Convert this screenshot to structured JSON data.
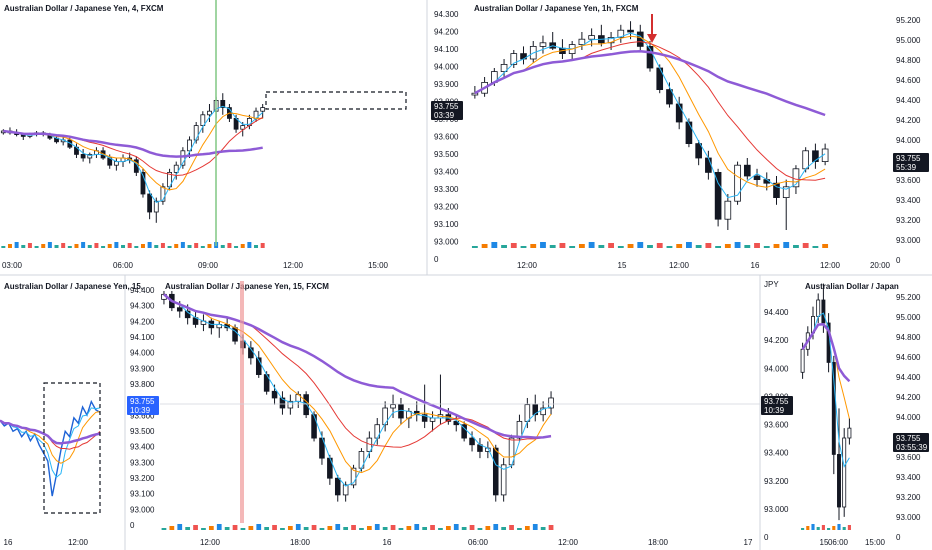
{
  "chart_data": [
    {
      "type": "candlestick",
      "title": "Australian Dollar / Japanese Yen, 4, FXCM",
      "x_ticks": [
        "03:00",
        "06:00",
        "09:00",
        "12:00",
        "15:00"
      ],
      "y_ticks": [],
      "price_badge": {
        "value": "",
        "countdown": ""
      },
      "candles": [
        [
          93.64,
          93.66,
          93.63,
          93.65
        ],
        [
          93.65,
          93.67,
          93.63,
          93.64
        ],
        [
          93.64,
          93.66,
          93.62,
          93.63
        ],
        [
          93.63,
          93.64,
          93.6,
          93.62
        ],
        [
          93.62,
          93.64,
          93.61,
          93.63
        ],
        [
          93.63,
          93.65,
          93.62,
          93.64
        ],
        [
          93.64,
          93.65,
          93.62,
          93.63
        ],
        [
          93.63,
          93.64,
          93.6,
          93.61
        ],
        [
          93.61,
          93.63,
          93.58,
          93.59
        ],
        [
          93.59,
          93.62,
          93.57,
          93.6
        ],
        [
          93.6,
          93.62,
          93.55,
          93.56
        ],
        [
          93.56,
          93.58,
          93.5,
          93.52
        ],
        [
          93.52,
          93.55,
          93.48,
          93.5
        ],
        [
          93.5,
          93.53,
          93.47,
          93.52
        ],
        [
          93.52,
          93.56,
          93.5,
          93.54
        ],
        [
          93.54,
          93.56,
          93.49,
          93.5
        ],
        [
          93.5,
          93.52,
          93.44,
          93.46
        ],
        [
          93.46,
          93.5,
          93.43,
          93.48
        ],
        [
          93.48,
          93.52,
          93.45,
          93.5
        ],
        [
          93.5,
          93.53,
          93.47,
          93.49
        ],
        [
          93.49,
          93.51,
          93.4,
          93.42
        ],
        [
          93.42,
          93.44,
          93.28,
          93.3
        ],
        [
          93.3,
          93.32,
          93.16,
          93.2
        ],
        [
          93.2,
          93.28,
          93.14,
          93.26
        ],
        [
          93.26,
          93.36,
          93.24,
          93.34
        ],
        [
          93.34,
          93.44,
          93.32,
          93.42
        ],
        [
          93.42,
          93.48,
          93.38,
          93.46
        ],
        [
          93.46,
          93.56,
          93.44,
          93.54
        ],
        [
          93.54,
          93.62,
          93.5,
          93.6
        ],
        [
          93.6,
          93.7,
          93.58,
          93.68
        ],
        [
          93.68,
          93.76,
          93.64,
          93.74
        ],
        [
          93.74,
          93.8,
          93.7,
          93.76
        ],
        [
          93.76,
          93.84,
          93.72,
          93.82
        ],
        [
          93.82,
          93.86,
          93.74,
          93.78
        ],
        [
          93.78,
          93.8,
          93.7,
          93.72
        ],
        [
          93.72,
          93.74,
          93.64,
          93.66
        ],
        [
          93.66,
          93.7,
          93.62,
          93.68
        ],
        [
          93.68,
          93.74,
          93.66,
          93.72
        ],
        [
          93.72,
          93.78,
          93.7,
          93.76
        ],
        [
          93.76,
          93.8,
          93.72,
          93.78
        ]
      ]
    },
    {
      "type": "candlestick",
      "title": "Australian Dollar / Japanese Yen, 1h, FXCM",
      "x_ticks": [
        "12:00",
        "15",
        "12:00",
        "16",
        "12:00",
        "20:00"
      ],
      "y_ticks": [
        "95.200",
        "95.000",
        "94.800",
        "94.600",
        "94.400",
        "94.200",
        "94.000",
        "93.800",
        "93.600",
        "93.400",
        "93.200",
        "93.000",
        "0"
      ],
      "left_y_ticks": [
        "94.300",
        "94.200",
        "94.100",
        "94.000",
        "93.900",
        "93.800",
        "93.700",
        "93.600",
        "93.500",
        "93.400",
        "93.300",
        "93.200",
        "93.100",
        "93.000",
        "0"
      ],
      "price_badge": {
        "value": "93.755",
        "countdown": "55:39"
      },
      "left_badge": {
        "value": "93.755",
        "countdown": "03:39"
      },
      "candles": [
        [
          93.85,
          93.9,
          93.83,
          93.86
        ],
        [
          93.86,
          93.95,
          93.84,
          93.92
        ],
        [
          93.92,
          94.0,
          93.9,
          93.98
        ],
        [
          93.98,
          94.05,
          93.94,
          94.02
        ],
        [
          94.02,
          94.1,
          94.0,
          94.08
        ],
        [
          94.08,
          94.12,
          94.02,
          94.05
        ],
        [
          94.05,
          94.15,
          94.03,
          94.12
        ],
        [
          94.12,
          94.18,
          94.08,
          94.14
        ],
        [
          94.14,
          94.2,
          94.1,
          94.11
        ],
        [
          94.11,
          94.16,
          94.05,
          94.08
        ],
        [
          94.08,
          94.15,
          94.04,
          94.13
        ],
        [
          94.13,
          94.2,
          94.1,
          94.16
        ],
        [
          94.16,
          94.22,
          94.12,
          94.18
        ],
        [
          94.18,
          94.24,
          94.12,
          94.14
        ],
        [
          94.14,
          94.2,
          94.1,
          94.17
        ],
        [
          94.17,
          94.24,
          94.14,
          94.21
        ],
        [
          94.21,
          94.26,
          94.16,
          94.2
        ],
        [
          94.2,
          94.24,
          94.1,
          94.12
        ],
        [
          94.12,
          94.15,
          93.98,
          94.0
        ],
        [
          94.0,
          94.02,
          93.86,
          93.88
        ],
        [
          93.88,
          93.92,
          93.78,
          93.8
        ],
        [
          93.8,
          93.84,
          93.66,
          93.7
        ],
        [
          93.7,
          93.72,
          93.56,
          93.58
        ],
        [
          93.58,
          93.6,
          93.46,
          93.5
        ],
        [
          93.5,
          93.54,
          93.38,
          93.42
        ],
        [
          93.42,
          93.44,
          93.12,
          93.16
        ],
        [
          93.16,
          93.3,
          93.1,
          93.26
        ],
        [
          93.26,
          93.48,
          93.24,
          93.46
        ],
        [
          93.46,
          93.5,
          93.38,
          93.4
        ],
        [
          93.4,
          93.44,
          93.34,
          93.38
        ],
        [
          93.38,
          93.42,
          93.32,
          93.36
        ],
        [
          93.36,
          93.4,
          93.24,
          93.28
        ],
        [
          93.28,
          93.38,
          93.1,
          93.34
        ],
        [
          93.34,
          93.46,
          93.3,
          93.44
        ],
        [
          93.44,
          93.56,
          93.42,
          93.54
        ],
        [
          93.54,
          93.58,
          93.44,
          93.48
        ],
        [
          93.48,
          93.58,
          93.46,
          93.55
        ]
      ]
    },
    {
      "type": "line",
      "title": "Australian Dollar / Japanese Yen, 15,",
      "x_ticks": [
        "16",
        "12:00"
      ],
      "y_ticks": [],
      "price_badge": {
        "value": "",
        "countdown": ""
      },
      "values": [
        93.7,
        93.66,
        93.68,
        93.62,
        93.64,
        93.58,
        93.62,
        93.55,
        93.6,
        93.52,
        93.46,
        93.4,
        93.14,
        93.3,
        93.48,
        93.62,
        93.58,
        93.72,
        93.68,
        93.8,
        93.74,
        93.84,
        93.78,
        93.76
      ]
    },
    {
      "type": "candlestick",
      "title": "Australian Dollar / Japanese Yen, 15, FXCM",
      "x_ticks": [
        "12:00",
        "18:00",
        "16",
        "06:00",
        "12:00",
        "18:00",
        "17",
        "06:00"
      ],
      "y_ticks": [],
      "left_y_ticks": [
        "94.400",
        "94.300",
        "94.200",
        "94.100",
        "94.000",
        "93.900",
        "93.800",
        "93.700",
        "93.600",
        "93.500",
        "93.400",
        "93.300",
        "93.200",
        "93.100",
        "93.000",
        "0"
      ],
      "left_badge": {
        "value": "93.755",
        "countdown": "10:39"
      },
      "price_badge": {
        "value": "",
        "countdown": ""
      },
      "candles": [
        [
          94.35,
          94.4,
          94.32,
          94.38
        ],
        [
          94.38,
          94.4,
          94.28,
          94.3
        ],
        [
          94.3,
          94.34,
          94.24,
          94.28
        ],
        [
          94.28,
          94.32,
          94.2,
          94.24
        ],
        [
          94.24,
          94.28,
          94.18,
          94.2
        ],
        [
          94.2,
          94.26,
          94.16,
          94.22
        ],
        [
          94.22,
          94.24,
          94.14,
          94.18
        ],
        [
          94.18,
          94.22,
          94.12,
          94.2
        ],
        [
          94.2,
          94.24,
          94.16,
          94.18
        ],
        [
          94.18,
          94.2,
          94.08,
          94.1
        ],
        [
          94.1,
          94.14,
          94.02,
          94.06
        ],
        [
          94.06,
          94.1,
          93.96,
          94.0
        ],
        [
          94.0,
          94.04,
          93.88,
          93.9
        ],
        [
          93.9,
          93.92,
          93.78,
          93.8
        ],
        [
          93.8,
          93.84,
          93.72,
          93.76
        ],
        [
          93.76,
          93.8,
          93.66,
          93.7
        ],
        [
          93.7,
          93.78,
          93.66,
          93.74
        ],
        [
          93.74,
          93.8,
          93.7,
          93.78
        ],
        [
          93.78,
          93.8,
          93.64,
          93.66
        ],
        [
          93.66,
          93.68,
          93.5,
          93.52
        ],
        [
          93.52,
          93.56,
          93.36,
          93.4
        ],
        [
          93.4,
          93.42,
          93.24,
          93.28
        ],
        [
          93.28,
          93.3,
          93.14,
          93.18
        ],
        [
          93.18,
          93.26,
          93.14,
          93.24
        ],
        [
          93.24,
          93.36,
          93.22,
          93.34
        ],
        [
          93.34,
          93.46,
          93.32,
          93.44
        ],
        [
          93.44,
          93.56,
          93.4,
          93.52
        ],
        [
          93.52,
          93.64,
          93.48,
          93.6
        ],
        [
          93.6,
          93.74,
          93.56,
          93.7
        ],
        [
          93.7,
          93.78,
          93.64,
          93.72
        ],
        [
          93.72,
          93.76,
          93.6,
          93.64
        ],
        [
          93.64,
          93.7,
          93.58,
          93.68
        ],
        [
          93.68,
          93.74,
          93.62,
          93.66
        ],
        [
          93.66,
          93.84,
          93.58,
          93.62
        ],
        [
          93.62,
          93.68,
          93.56,
          93.64
        ],
        [
          93.64,
          93.9,
          93.6,
          93.66
        ],
        [
          93.66,
          93.7,
          93.6,
          93.62
        ],
        [
          93.62,
          93.66,
          93.56,
          93.6
        ],
        [
          93.6,
          93.62,
          93.5,
          93.52
        ],
        [
          93.52,
          93.56,
          93.44,
          93.48
        ],
        [
          93.48,
          93.52,
          93.4,
          93.44
        ],
        [
          93.44,
          93.5,
          93.4,
          93.46
        ],
        [
          93.46,
          93.48,
          93.14,
          93.18
        ],
        [
          93.18,
          93.4,
          93.14,
          93.36
        ],
        [
          93.36,
          93.54,
          93.34,
          93.52
        ],
        [
          93.52,
          93.66,
          93.5,
          93.62
        ],
        [
          93.62,
          93.76,
          93.58,
          93.72
        ],
        [
          93.72,
          93.78,
          93.62,
          93.66
        ],
        [
          93.66,
          93.74,
          93.62,
          93.7
        ],
        [
          93.7,
          93.8,
          93.66,
          93.76
        ]
      ]
    },
    {
      "type": "candlestick",
      "title": "Australian Dollar / Japan",
      "x_ticks": [
        "15",
        "15:00"
      ],
      "y_ticks": [
        "95.200",
        "95.000",
        "94.800",
        "94.600",
        "94.400",
        "94.200",
        "94.000",
        "93.800",
        "93.600",
        "93.400",
        "93.200",
        "93.000",
        "0"
      ],
      "left_y_ticks": [
        "JPY",
        "94.400",
        "94.200",
        "94.000",
        "93.800",
        "93.600",
        "93.400",
        "93.200",
        "93.000",
        "0"
      ],
      "price_badge": {
        "value": "93.755",
        "countdown": "03:55:39"
      },
      "left_badge": {
        "value": "93.755",
        "countdown": "10:39"
      },
      "candles": [
        [
          93.96,
          94.14,
          93.92,
          94.1
        ],
        [
          94.1,
          94.24,
          94.06,
          94.2
        ],
        [
          94.2,
          94.36,
          94.16,
          94.3
        ],
        [
          94.3,
          94.44,
          94.26,
          94.4
        ],
        [
          94.4,
          94.5,
          94.2,
          94.26
        ],
        [
          94.26,
          94.32,
          93.96,
          94.02
        ],
        [
          94.02,
          94.06,
          93.34,
          93.46
        ],
        [
          93.46,
          93.74,
          93.06,
          93.14
        ],
        [
          93.14,
          93.62,
          93.08,
          93.56
        ],
        [
          93.56,
          93.68,
          93.52,
          93.62
        ]
      ]
    }
  ],
  "axis_unit": "JPY"
}
